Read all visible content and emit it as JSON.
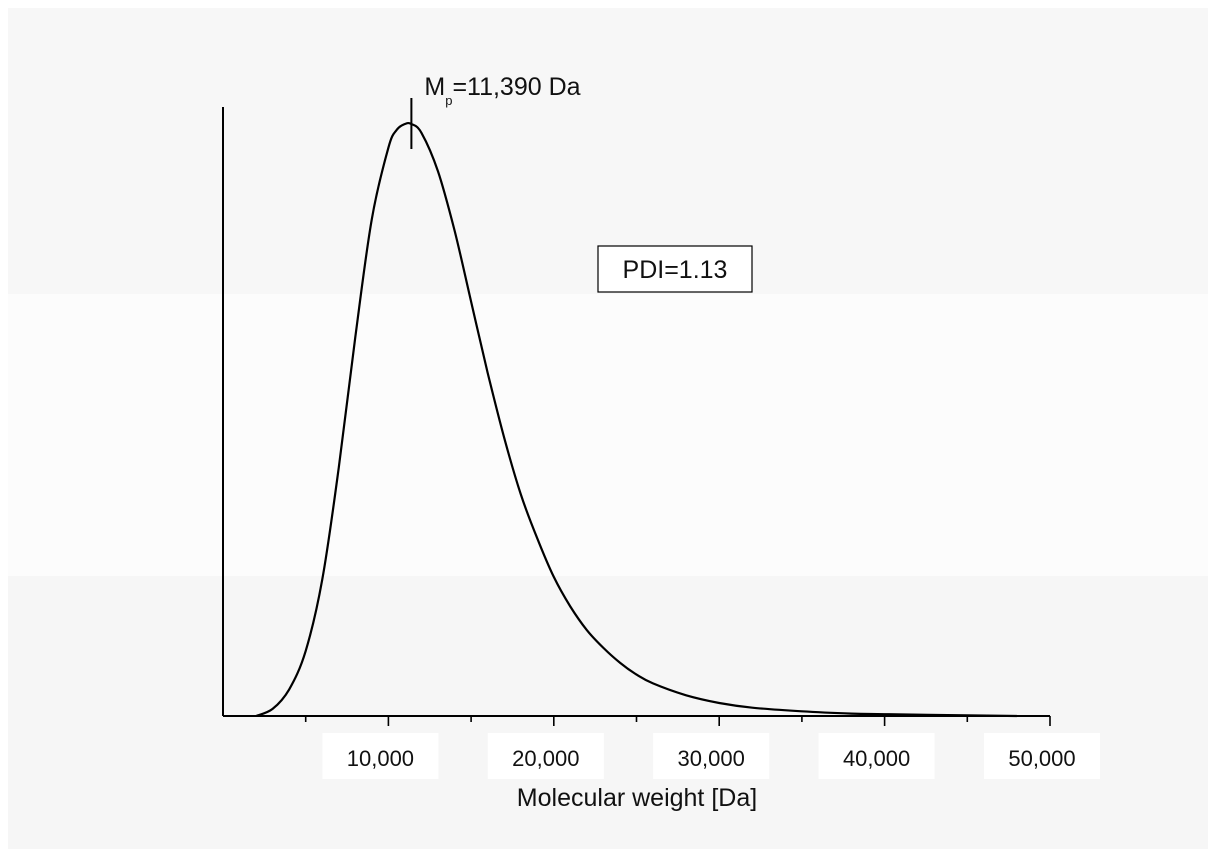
{
  "chart_data": {
    "type": "line",
    "title": "",
    "xlabel": "Molecular weight [Da]",
    "ylabel": "",
    "xlim": [
      0,
      50000
    ],
    "ylim": [
      0,
      1.0
    ],
    "grid": false,
    "legend": "none",
    "x_ticks": [
      10000,
      20000,
      30000,
      40000,
      50000
    ],
    "x_tick_labels": [
      "10,000",
      "20,000",
      "30,000",
      "40,000",
      "50,000"
    ],
    "series": [
      {
        "color": "#000000",
        "x": [
          2000,
          3000,
          4000,
          5000,
          6000,
          7000,
          8000,
          9000,
          10000,
          10500,
          11000,
          11390,
          12000,
          13000,
          14000,
          15000,
          16000,
          17000,
          18000,
          19000,
          20000,
          21000,
          22000,
          23000,
          24000,
          25000,
          26000,
          28000,
          30000,
          32000,
          35000,
          38000,
          40000,
          45000,
          48000
        ],
        "y": [
          0.0,
          0.012,
          0.045,
          0.11,
          0.23,
          0.42,
          0.64,
          0.84,
          0.96,
          0.99,
          1.0,
          1.0,
          0.985,
          0.92,
          0.82,
          0.7,
          0.58,
          0.47,
          0.375,
          0.3,
          0.235,
          0.185,
          0.145,
          0.115,
          0.09,
          0.07,
          0.055,
          0.035,
          0.022,
          0.014,
          0.008,
          0.004,
          0.003,
          0.001,
          0.0
        ]
      }
    ],
    "annotations": {
      "peak": {
        "x": 11390,
        "prefix": "M",
        "subscript": "p",
        "suffix": "=11,390 Da"
      },
      "pdi": {
        "text": "PDI=1.13"
      }
    },
    "background_bands": [
      "#f7f7f7",
      "#fcfcfc",
      "#f6f6f6"
    ]
  }
}
